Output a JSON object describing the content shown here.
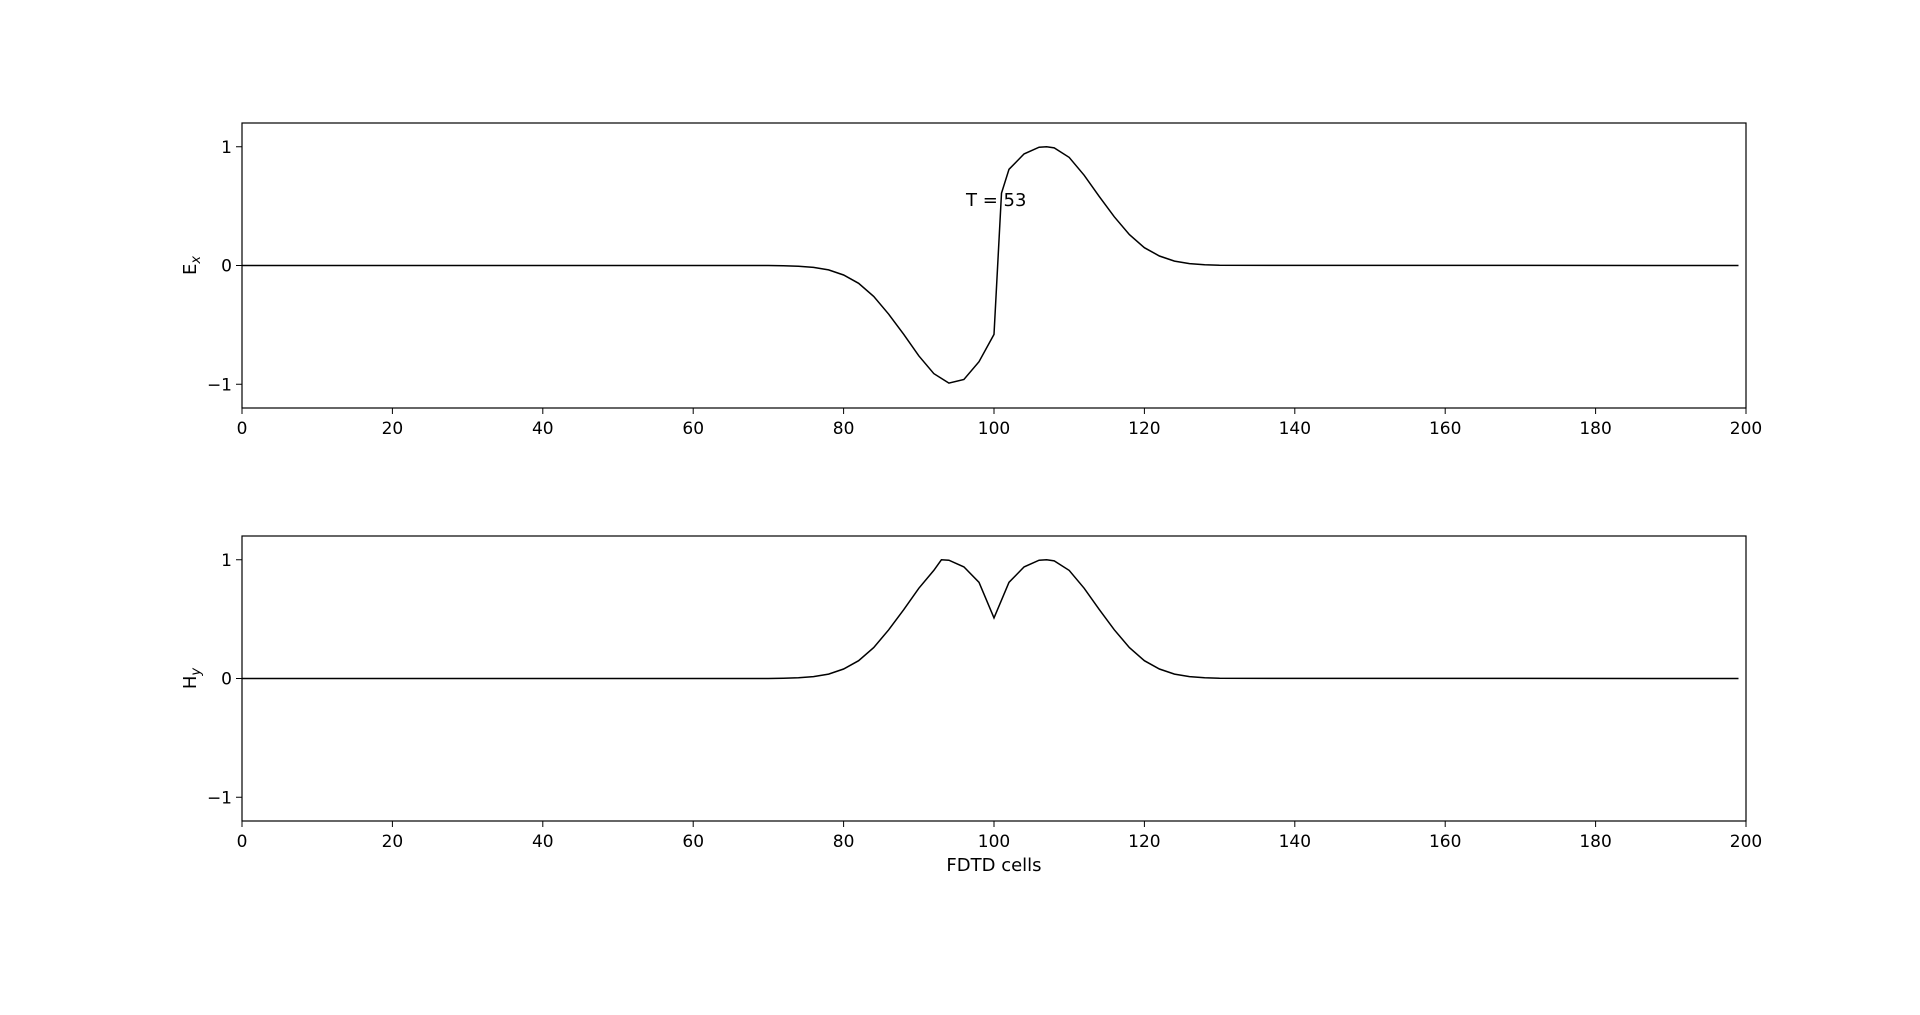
{
  "chart_data": [
    {
      "type": "line",
      "ylabel": "E",
      "ylabel_sub": "x",
      "xlabel": "",
      "xlim": [
        0,
        200
      ],
      "ylim": [
        -1.2,
        1.2
      ],
      "xticks": [
        "0",
        "20",
        "40",
        "60",
        "80",
        "100",
        "120",
        "140",
        "160",
        "180",
        "200"
      ],
      "yticks": [
        "1",
        "0",
        "−1"
      ],
      "annotation": "T = 53",
      "line_color": "#000000",
      "grid": false,
      "series": [
        {
          "x": [
            0,
            70,
            72,
            74,
            76,
            78,
            80,
            82,
            84,
            86,
            88,
            90,
            92,
            94,
            96,
            98,
            100,
            101,
            102,
            104,
            106,
            107,
            108,
            110,
            112,
            114,
            116,
            118,
            120,
            122,
            124,
            126,
            128,
            130,
            199
          ],
          "values": [
            0,
            0,
            -0.002,
            -0.006,
            -0.016,
            -0.037,
            -0.08,
            -0.15,
            -0.26,
            -0.41,
            -0.58,
            -0.76,
            -0.91,
            -0.99,
            -0.96,
            -0.81,
            -0.58,
            0.61,
            0.81,
            0.94,
            0.996,
            1.0,
            0.99,
            0.91,
            0.76,
            0.58,
            0.41,
            0.26,
            0.15,
            0.08,
            0.037,
            0.016,
            0.006,
            0.002,
            0
          ]
        }
      ]
    },
    {
      "type": "line",
      "ylabel": "H",
      "ylabel_sub": "y",
      "xlabel": "FDTD cells",
      "xlim": [
        0,
        200
      ],
      "ylim": [
        -1.2,
        1.2
      ],
      "xticks": [
        "0",
        "20",
        "40",
        "60",
        "80",
        "100",
        "120",
        "140",
        "160",
        "180",
        "200"
      ],
      "yticks": [
        "1",
        "0",
        "−1"
      ],
      "line_color": "#000000",
      "grid": false,
      "series": [
        {
          "x": [
            0,
            70,
            72,
            74,
            76,
            78,
            80,
            82,
            84,
            86,
            88,
            90,
            92,
            93,
            94,
            96,
            98,
            100,
            102,
            104,
            106,
            107,
            108,
            110,
            112,
            114,
            116,
            118,
            120,
            122,
            124,
            126,
            128,
            130,
            199
          ],
          "values": [
            0,
            0,
            0.002,
            0.006,
            0.016,
            0.037,
            0.08,
            0.15,
            0.26,
            0.41,
            0.58,
            0.76,
            0.91,
            1.0,
            0.996,
            0.94,
            0.81,
            0.51,
            0.81,
            0.94,
            0.996,
            1.0,
            0.99,
            0.91,
            0.76,
            0.58,
            0.41,
            0.26,
            0.15,
            0.08,
            0.037,
            0.016,
            0.006,
            0.002,
            0
          ]
        }
      ]
    }
  ]
}
